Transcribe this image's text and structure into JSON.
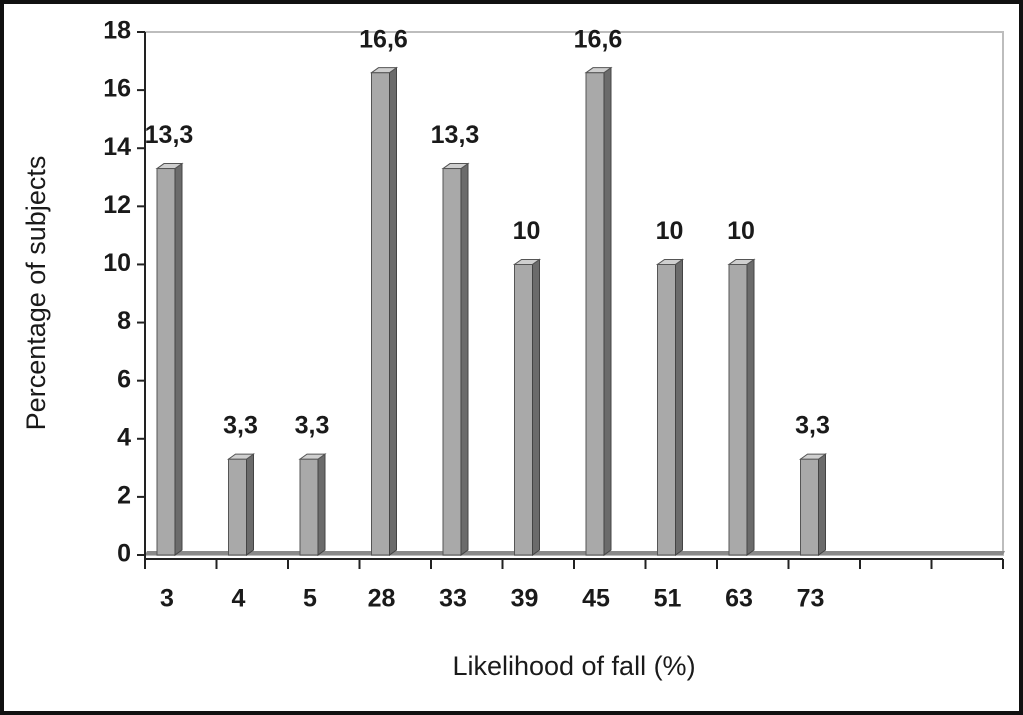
{
  "chart_data": {
    "type": "bar3d",
    "x_label": "Likelihood of fall (%)",
    "y_label": "Percentage of subjects",
    "categories": [
      "3",
      "4",
      "5",
      "28",
      "33",
      "39",
      "45",
      "51",
      "63",
      "73",
      null,
      null
    ],
    "values": [
      13.3,
      3.3,
      3.3,
      16.6,
      13.3,
      10,
      16.6,
      10,
      10,
      3.3,
      null,
      null
    ],
    "value_labels": [
      "13,3",
      "3,3",
      "3,3",
      "16,6",
      "13,3",
      "10",
      "16,6",
      "10",
      "10",
      "3,3",
      null,
      null
    ],
    "color": "#a9a9a9",
    "ylim": [
      0,
      18
    ],
    "yticks": [
      0,
      2,
      4,
      6,
      8,
      10,
      12,
      14,
      16,
      18
    ]
  }
}
